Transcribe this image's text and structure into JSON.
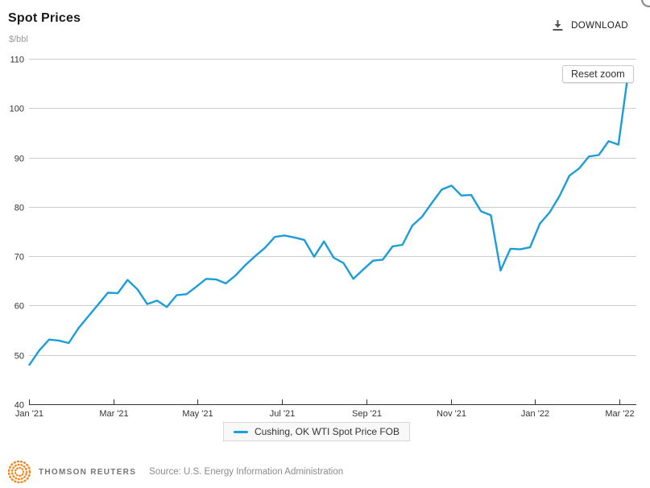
{
  "header": {
    "title": "Spot Prices",
    "download_label": "DOWNLOAD"
  },
  "chart": {
    "unit_label": "$/bbl",
    "reset_zoom_label": "Reset zoom"
  },
  "footer": {
    "brand": "THOMSON REUTERS",
    "source": "Source: U.S. Energy Information Administration"
  },
  "colors": {
    "line": "#1b9dd9",
    "grid": "#cccccc",
    "axis": "#333333",
    "logo_orange": "#f6871f"
  },
  "chart_data": {
    "type": "line",
    "title": "Spot Prices",
    "ylabel": "$/bbl",
    "ylim": [
      40,
      110
    ],
    "y_ticks": [
      40,
      50,
      60,
      70,
      80,
      90,
      100,
      110
    ],
    "x_tick_labels": [
      "Jan '21",
      "Mar '21",
      "May '21",
      "Jul '21",
      "Sep '21",
      "Nov '21",
      "Jan '22",
      "Mar '22"
    ],
    "grid": "horizontal",
    "legend_position": "bottom-center",
    "series": [
      {
        "name": "Cushing, OK WTI Spot Price FOB",
        "color": "#1b9dd9",
        "cadence": "weekly",
        "x_start": "Jan '21",
        "x_end": "Mar '22",
        "values": [
          48.0,
          50.9,
          53.1,
          52.9,
          52.4,
          55.4,
          57.8,
          60.2,
          62.6,
          62.5,
          65.2,
          63.3,
          60.3,
          61.0,
          59.7,
          62.1,
          62.3,
          63.8,
          65.4,
          65.3,
          64.5,
          66.1,
          68.2,
          70.0,
          71.7,
          73.9,
          74.2,
          73.8,
          73.3,
          69.9,
          73.0,
          69.7,
          68.6,
          65.4,
          67.3,
          69.1,
          69.3,
          72.0,
          72.3,
          76.2,
          78.0,
          80.8,
          83.5,
          84.3,
          82.3,
          82.4,
          79.1,
          78.3,
          67.1,
          71.5,
          71.4,
          71.8,
          76.6,
          78.9,
          82.2,
          86.3,
          87.8,
          90.2,
          90.5,
          93.3,
          92.6,
          107.2
        ]
      }
    ]
  }
}
